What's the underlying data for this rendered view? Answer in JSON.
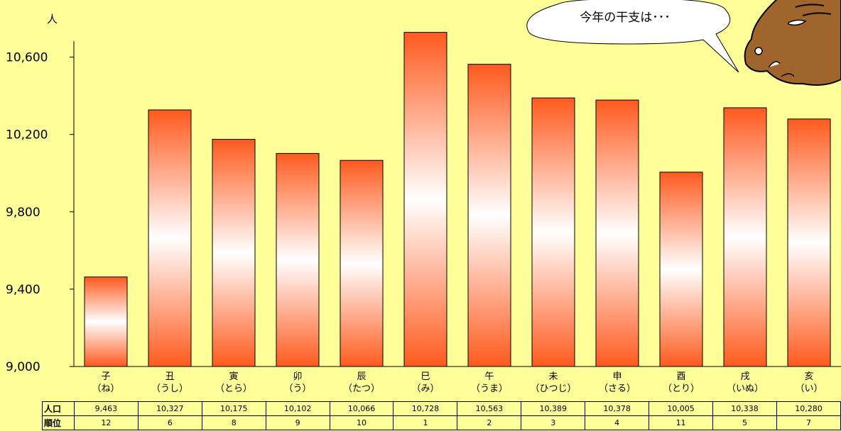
{
  "callout": {
    "text": "今年の干支は･･･"
  },
  "chart_data": {
    "type": "bar",
    "ylabel": "人",
    "ylim": [
      9000,
      10800
    ],
    "yticks": [
      9000,
      9400,
      9800,
      10200,
      10600
    ],
    "ytick_labels": [
      "9,000",
      "9,400",
      "9,800",
      "10,200",
      "10,600"
    ],
    "categories": [
      "子",
      "丑",
      "寅",
      "卯",
      "辰",
      "巳",
      "午",
      "未",
      "申",
      "酉",
      "戌",
      "亥"
    ],
    "readings": [
      "（ね）",
      "（うし）",
      "（とら）",
      "（う）",
      "（たつ）",
      "（み）",
      "（うま）",
      "（ひつじ）",
      "（さる）",
      "（とり）",
      "（いぬ）",
      "（い）"
    ],
    "values": [
      9463,
      10327,
      10175,
      10102,
      10066,
      10728,
      10563,
      10389,
      10378,
      10005,
      10338,
      10280
    ],
    "bar_colors": {
      "edge": "#ff5a1e",
      "center": "#ffffff",
      "outline": "#000000"
    },
    "table": {
      "row_headers": [
        "人口",
        "順位"
      ],
      "population": [
        "9,463",
        "10,327",
        "10,175",
        "10,102",
        "10,066",
        "10,728",
        "10,563",
        "10,389",
        "10,378",
        "10,005",
        "10,338",
        "10,280"
      ],
      "rank": [
        "12",
        "6",
        "8",
        "9",
        "10",
        "1",
        "2",
        "3",
        "4",
        "11",
        "5",
        "7"
      ]
    }
  },
  "mascot": {
    "icon": "boar-icon",
    "color": "#a0652a"
  }
}
